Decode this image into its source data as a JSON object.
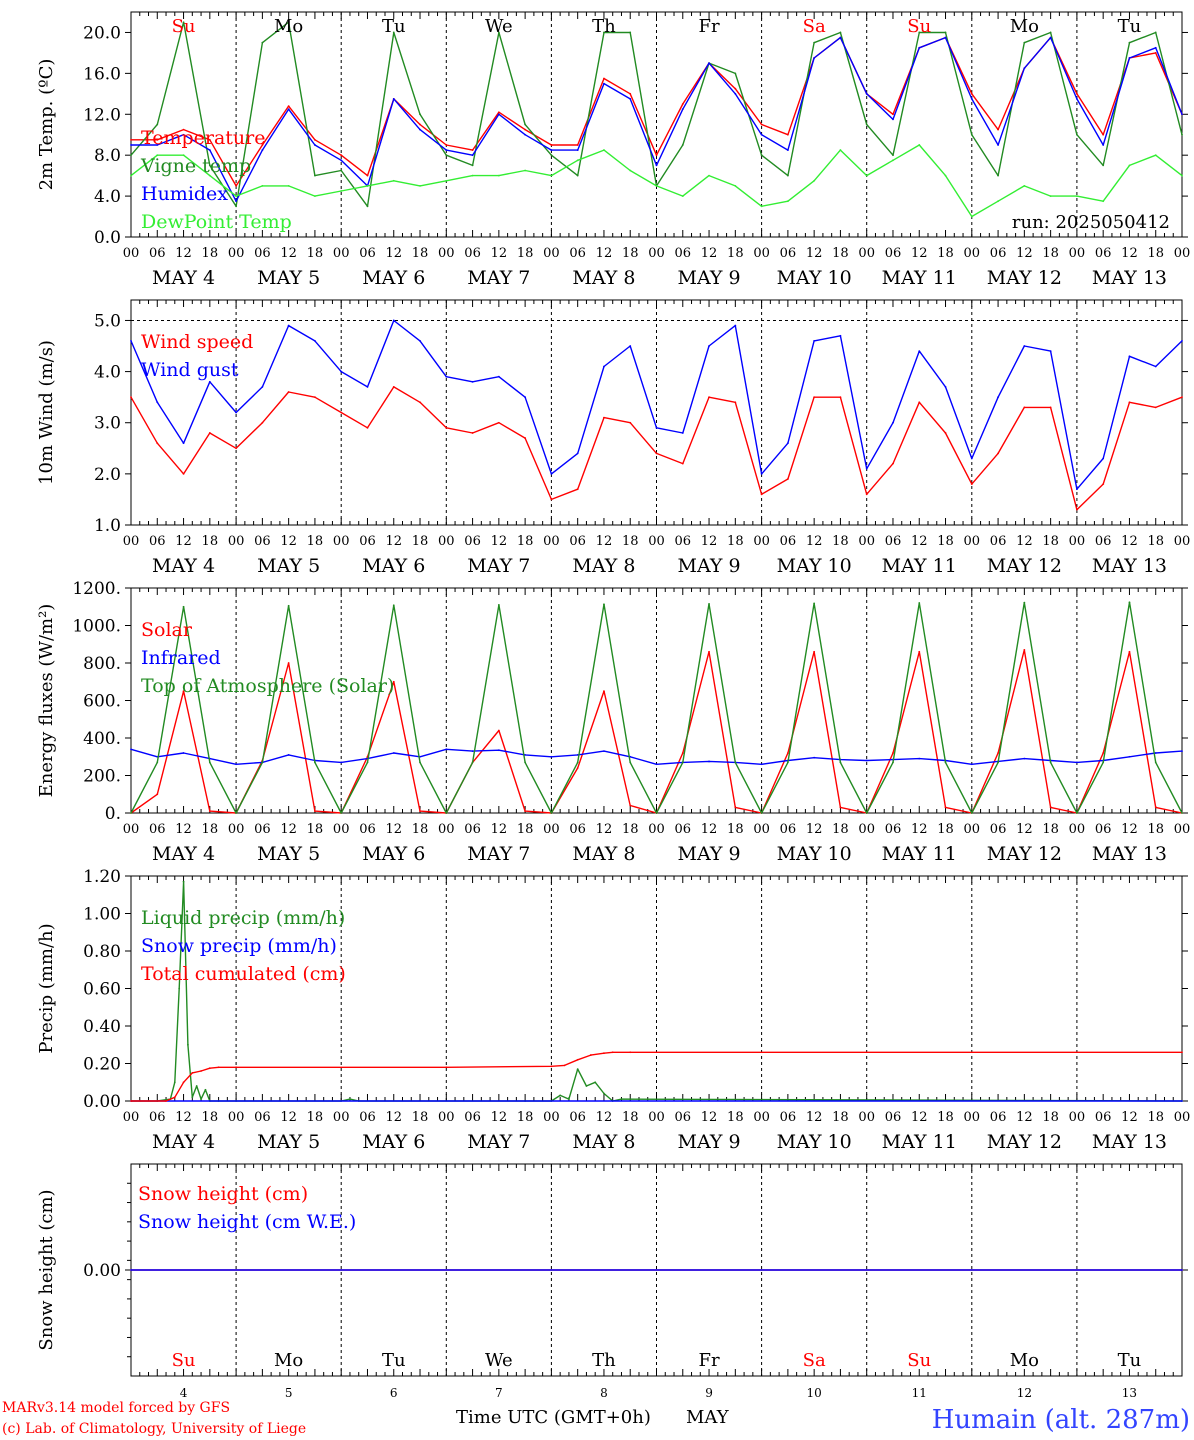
{
  "meta": {
    "run_label": "run: 2025050412",
    "footer_left_1": "MARv3.14 model forced by GFS",
    "footer_left_2": "(c) Lab. of Climatology, University of Liege",
    "footer_center": "Time UTC (GMT+0h)",
    "footer_month": "MAY",
    "station": "Humain (alt. 287m)",
    "hour_ticks": [
      "00",
      "06",
      "12",
      "18"
    ],
    "final_tick": "00",
    "day_labels": [
      "MAY  4",
      "MAY  5",
      "MAY  6",
      "MAY  7",
      "MAY  8",
      "MAY  9",
      "MAY 10",
      "MAY 11",
      "MAY 12",
      "MAY 13"
    ],
    "weekdays": [
      "Su",
      "Mo",
      "Tu",
      "We",
      "Th",
      "Fr",
      "Sa",
      "Su",
      "Mo",
      "Tu"
    ],
    "weekday_colors": [
      "#ff0000",
      "#000000",
      "#000000",
      "#000000",
      "#000000",
      "#000000",
      "#ff0000",
      "#ff0000",
      "#000000",
      "#000000"
    ],
    "day_numbers": [
      "4",
      "5",
      "6",
      "7",
      "8",
      "9",
      "10",
      "11",
      "12",
      "13"
    ]
  },
  "chart_data": [
    {
      "type": "line",
      "ylabel": "2m Temp. (ºC)",
      "ylim": [
        0,
        22
      ],
      "yticks": [
        "0.0",
        "4.0",
        "8.0",
        "12.0",
        "16.0",
        "20.0"
      ],
      "ytick_values": [
        0,
        4,
        8,
        12,
        16,
        20
      ],
      "legend": [
        "Temperature",
        "Vigne temp",
        "Humidex",
        "DewPoint Temp"
      ],
      "x_hours": [
        0,
        6,
        12,
        18,
        24,
        30,
        36,
        42,
        48,
        54,
        60,
        66,
        72,
        78,
        84,
        90,
        96,
        102,
        108,
        114,
        120,
        126,
        132,
        138,
        144,
        150,
        156,
        162,
        168,
        174,
        180,
        186,
        192,
        198,
        204,
        210,
        216,
        222,
        228,
        234,
        240
      ],
      "series": [
        {
          "name": "Temperature",
          "color": "#ff0000",
          "values": [
            9.5,
            9.5,
            10.5,
            9.5,
            5.0,
            9.0,
            12.8,
            9.5,
            8.0,
            6.0,
            13.5,
            11.0,
            9.0,
            8.5,
            12.2,
            10.5,
            9.0,
            9.0,
            15.5,
            14.0,
            8.0,
            13.0,
            17.0,
            14.5,
            11.0,
            10.0,
            17.5,
            19.5,
            14.0,
            12.0,
            18.5,
            19.5,
            14.0,
            10.5,
            16.5,
            19.5,
            14.0,
            10.0,
            17.5,
            18.0,
            12.0
          ]
        },
        {
          "name": "Vigne temp",
          "color": "#228b22",
          "values": [
            8.0,
            11.0,
            21.0,
            7.0,
            3.0,
            19.0,
            21.0,
            6.0,
            6.5,
            3.0,
            20.0,
            12.0,
            8.0,
            7.0,
            20.0,
            11.0,
            8.0,
            6.0,
            20.0,
            20.0,
            5.0,
            9.0,
            17.0,
            16.0,
            8.0,
            6.0,
            19.0,
            20.0,
            11.0,
            8.0,
            20.0,
            20.0,
            10.0,
            6.0,
            19.0,
            20.0,
            10.0,
            7.0,
            19.0,
            20.0,
            10.0
          ]
        },
        {
          "name": "Humidex",
          "color": "#0000ff",
          "values": [
            9.0,
            9.0,
            10.0,
            8.5,
            3.5,
            8.5,
            12.5,
            9.0,
            7.5,
            5.0,
            13.5,
            10.5,
            8.5,
            8.0,
            12.0,
            10.0,
            8.5,
            8.5,
            15.0,
            13.5,
            7.0,
            12.5,
            17.0,
            14.0,
            10.0,
            8.5,
            17.5,
            19.5,
            14.0,
            11.5,
            18.5,
            19.5,
            13.5,
            9.0,
            16.5,
            19.5,
            13.5,
            9.0,
            17.5,
            18.5,
            12.0
          ]
        },
        {
          "name": "DewPoint Temp",
          "color": "#33ee33",
          "values": [
            6.0,
            8.0,
            8.0,
            6.0,
            4.0,
            5.0,
            5.0,
            4.0,
            4.5,
            5.0,
            5.5,
            5.0,
            5.5,
            6.0,
            6.0,
            6.5,
            6.0,
            7.5,
            8.5,
            6.5,
            5.0,
            4.0,
            6.0,
            5.0,
            3.0,
            3.5,
            5.5,
            8.5,
            6.0,
            7.5,
            9.0,
            6.0,
            2.0,
            3.5,
            5.0,
            4.0,
            4.0,
            3.5,
            7.0,
            8.0,
            6.0
          ]
        }
      ]
    },
    {
      "type": "line",
      "ylabel": "10m Wind (m/s)",
      "ylim": [
        1.0,
        5.4
      ],
      "yticks": [
        "1.0",
        "2.0",
        "3.0",
        "4.0",
        "5.0"
      ],
      "ytick_values": [
        1,
        2,
        3,
        4,
        5
      ],
      "legend": [
        "Wind speed",
        "Wind gust"
      ],
      "x_hours": [
        0,
        6,
        12,
        18,
        24,
        30,
        36,
        42,
        48,
        54,
        60,
        66,
        72,
        78,
        84,
        90,
        96,
        102,
        108,
        114,
        120,
        126,
        132,
        138,
        144,
        150,
        156,
        162,
        168,
        174,
        180,
        186,
        192,
        198,
        204,
        210,
        216,
        222,
        228,
        234,
        240
      ],
      "series": [
        {
          "name": "Wind speed",
          "color": "#ff0000",
          "values": [
            3.5,
            2.6,
            2.0,
            2.8,
            2.5,
            3.0,
            3.6,
            3.5,
            3.2,
            2.9,
            3.7,
            3.4,
            2.9,
            2.8,
            3.0,
            2.7,
            1.5,
            1.7,
            3.1,
            3.0,
            2.4,
            2.2,
            3.5,
            3.4,
            1.6,
            1.9,
            3.5,
            3.5,
            1.6,
            2.2,
            3.4,
            2.8,
            1.8,
            2.4,
            3.3,
            3.3,
            1.3,
            1.8,
            3.4,
            3.3,
            3.5
          ]
        },
        {
          "name": "Wind gust",
          "color": "#0000ff",
          "values": [
            4.6,
            3.4,
            2.6,
            3.8,
            3.2,
            3.7,
            4.9,
            4.6,
            4.0,
            3.7,
            5.0,
            4.6,
            3.9,
            3.8,
            3.9,
            3.5,
            2.0,
            2.4,
            4.1,
            4.5,
            2.9,
            2.8,
            4.5,
            4.9,
            2.0,
            2.6,
            4.6,
            4.7,
            2.1,
            3.0,
            4.4,
            3.7,
            2.3,
            3.5,
            4.5,
            4.4,
            1.7,
            2.3,
            4.3,
            4.1,
            4.6
          ]
        }
      ]
    },
    {
      "type": "line",
      "ylabel": "Energy fluxes (W/m²)",
      "ylim": [
        0,
        1200
      ],
      "yticks": [
        "0.",
        "200.",
        "400.",
        "600.",
        "800.",
        "1000.",
        "1200."
      ],
      "ytick_values": [
        0,
        200,
        400,
        600,
        800,
        1000,
        1200
      ],
      "legend": [
        "Solar",
        "Infrared",
        "Top of Atmosphere (Solar)"
      ],
      "x_hours": [
        0,
        6,
        12,
        18,
        24,
        30,
        36,
        42,
        48,
        54,
        60,
        66,
        72,
        78,
        84,
        90,
        96,
        102,
        108,
        114,
        120,
        126,
        132,
        138,
        144,
        150,
        156,
        162,
        168,
        174,
        180,
        186,
        192,
        198,
        204,
        210,
        216,
        222,
        228,
        234,
        240
      ],
      "series": [
        {
          "name": "Solar",
          "color": "#ff0000",
          "values": [
            0,
            100,
            650,
            10,
            0,
            280,
            800,
            10,
            0,
            300,
            700,
            10,
            0,
            270,
            440,
            10,
            0,
            240,
            650,
            40,
            0,
            320,
            860,
            30,
            0,
            320,
            860,
            30,
            0,
            320,
            860,
            30,
            0,
            320,
            870,
            30,
            0,
            320,
            860,
            30,
            0
          ]
        },
        {
          "name": "Infrared",
          "color": "#0000ff",
          "values": [
            340,
            300,
            320,
            290,
            260,
            270,
            310,
            280,
            270,
            290,
            320,
            300,
            340,
            330,
            335,
            310,
            300,
            310,
            330,
            300,
            260,
            270,
            275,
            270,
            260,
            280,
            295,
            285,
            280,
            285,
            290,
            280,
            260,
            275,
            290,
            280,
            270,
            280,
            300,
            320,
            330
          ]
        },
        {
          "name": "Top of Atmosphere (Solar)",
          "color": "#228b22",
          "values": [
            0,
            270,
            1100,
            270,
            0,
            270,
            1105,
            270,
            0,
            270,
            1108,
            270,
            0,
            270,
            1110,
            270,
            0,
            270,
            1113,
            270,
            0,
            270,
            1115,
            270,
            0,
            270,
            1118,
            270,
            0,
            270,
            1120,
            270,
            0,
            270,
            1122,
            270,
            0,
            270,
            1124,
            270,
            0
          ]
        }
      ]
    },
    {
      "type": "line",
      "ylabel": "Precip (mm/h)",
      "ylim": [
        0,
        1.2
      ],
      "yticks": [
        "0.00",
        "0.20",
        "0.40",
        "0.60",
        "0.80",
        "1.00",
        "1.20"
      ],
      "ytick_values": [
        0,
        0.2,
        0.4,
        0.6,
        0.8,
        1.0,
        1.2
      ],
      "legend": [
        "Liquid precip (mm/h)",
        "Snow precip (mm/h)",
        "Total cumulated (cm)"
      ],
      "series": [
        {
          "name": "Liquid precip (mm/h)",
          "color": "#228b22",
          "x": [
            0,
            6,
            9,
            10,
            11,
            12,
            13,
            14,
            15,
            16,
            17,
            18,
            20,
            24,
            48,
            50,
            52,
            90,
            96,
            98,
            100,
            102,
            104,
            106,
            108,
            110,
            112,
            240
          ],
          "values": [
            0,
            0,
            0.01,
            0.1,
            0.6,
            1.17,
            0.3,
            0.02,
            0.08,
            0.01,
            0.06,
            0,
            0,
            0,
            0,
            0.01,
            0,
            0,
            0,
            0.03,
            0.01,
            0.17,
            0.08,
            0.1,
            0.04,
            0,
            0.01,
            0
          ]
        },
        {
          "name": "Snow precip (mm/h)",
          "color": "#0000ff",
          "x": [
            0,
            240
          ],
          "values": [
            0,
            0
          ]
        },
        {
          "name": "Total cumulated (cm)",
          "color": "#ff0000",
          "x": [
            0,
            8,
            10,
            12,
            14,
            16,
            18,
            20,
            24,
            72,
            96,
            99,
            102,
            105,
            108,
            110,
            114,
            240
          ],
          "values": [
            0,
            0,
            0.02,
            0.1,
            0.15,
            0.16,
            0.175,
            0.18,
            0.18,
            0.18,
            0.185,
            0.19,
            0.22,
            0.245,
            0.255,
            0.26,
            0.26,
            0.26
          ]
        }
      ]
    },
    {
      "type": "line",
      "ylabel": "Snow height (cm)",
      "ylim": [
        -1,
        1
      ],
      "yticks": [
        "0.00"
      ],
      "ytick_values": [
        0
      ],
      "legend": [
        "Snow height (cm)",
        "Snow height (cm W.E.)"
      ],
      "series": [
        {
          "name": "Snow height (cm)",
          "color": "#ff0000",
          "x": [
            0,
            240
          ],
          "values": [
            0,
            0
          ]
        },
        {
          "name": "Snow height (cm W.E.)",
          "color": "#0000ff",
          "x": [
            0,
            240
          ],
          "values": [
            0,
            0
          ]
        }
      ]
    }
  ]
}
